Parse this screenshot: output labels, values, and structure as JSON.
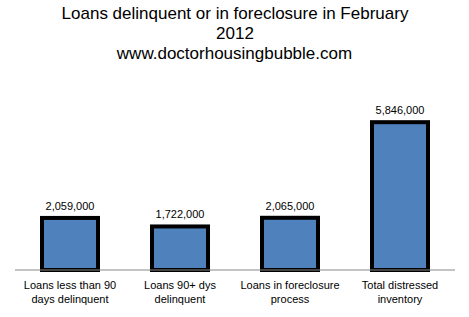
{
  "chart_data": {
    "type": "bar",
    "title": "Loans delinquent or in foreclosure in February 2012",
    "subtitle": "www.doctorhousingbubble.com",
    "categories": [
      "Loans less than 90 days delinquent",
      "Loans 90+ dys delinquent",
      "Loans in foreclosure process",
      "Total distressed inventory"
    ],
    "values": [
      2059000,
      1722000,
      2065000,
      5846000
    ],
    "value_labels": [
      "2,059,000",
      "1,722,000",
      "2,065,000",
      "5,846,000"
    ],
    "data_labels": true,
    "color": "#4f81bd",
    "ylim": [
      0,
      7000000
    ],
    "tick_labels": "x",
    "grid": false
  }
}
